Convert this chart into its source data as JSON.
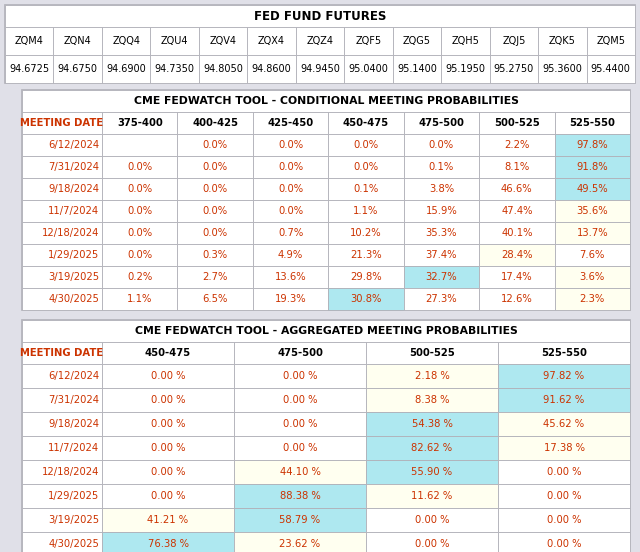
{
  "bg_color": "#e0e0e8",
  "section1_title": "FED FUND FUTURES",
  "futures_headers": [
    "ZQM4",
    "ZQN4",
    "ZQQ4",
    "ZQU4",
    "ZQV4",
    "ZQX4",
    "ZQZ4",
    "ZQF5",
    "ZQG5",
    "ZQH5",
    "ZQJ5",
    "ZQK5",
    "ZQM5"
  ],
  "futures_values": [
    "94.6725",
    "94.6750",
    "94.6900",
    "94.7350",
    "94.8050",
    "94.8600",
    "94.9450",
    "95.0400",
    "95.1400",
    "95.1950",
    "95.2750",
    "95.3600",
    "95.4400"
  ],
  "section2_title": "CME FEDWATCH TOOL - CONDITIONAL MEETING PROBABILITIES",
  "cond_headers": [
    "MEETING DATE",
    "375-400",
    "400-425",
    "425-450",
    "450-475",
    "475-500",
    "500-525",
    "525-550"
  ],
  "cond_dates": [
    "6/12/2024",
    "7/31/2024",
    "9/18/2024",
    "11/7/2024",
    "12/18/2024",
    "1/29/2025",
    "3/19/2025",
    "4/30/2025"
  ],
  "cond_data": [
    [
      "",
      "0.0%",
      "0.0%",
      "0.0%",
      "0.0%",
      "2.2%",
      "97.8%"
    ],
    [
      "0.0%",
      "0.0%",
      "0.0%",
      "0.0%",
      "0.1%",
      "8.1%",
      "91.8%"
    ],
    [
      "0.0%",
      "0.0%",
      "0.0%",
      "0.1%",
      "3.8%",
      "46.6%",
      "49.5%"
    ],
    [
      "0.0%",
      "0.0%",
      "0.0%",
      "1.1%",
      "15.9%",
      "47.4%",
      "35.6%"
    ],
    [
      "0.0%",
      "0.0%",
      "0.7%",
      "10.2%",
      "35.3%",
      "40.1%",
      "13.7%"
    ],
    [
      "0.0%",
      "0.3%",
      "4.9%",
      "21.3%",
      "37.4%",
      "28.4%",
      "7.6%"
    ],
    [
      "0.2%",
      "2.7%",
      "13.6%",
      "29.8%",
      "32.7%",
      "17.4%",
      "3.6%"
    ],
    [
      "1.1%",
      "6.5%",
      "19.3%",
      "30.8%",
      "27.3%",
      "12.6%",
      "2.3%"
    ]
  ],
  "cond_highlight": [
    [
      null,
      null,
      null,
      null,
      null,
      null,
      "cyan"
    ],
    [
      null,
      null,
      null,
      null,
      null,
      null,
      "cyan"
    ],
    [
      null,
      null,
      null,
      null,
      null,
      null,
      "cyan"
    ],
    [
      null,
      null,
      null,
      null,
      null,
      null,
      "yellow"
    ],
    [
      null,
      null,
      null,
      null,
      null,
      null,
      "yellow"
    ],
    [
      null,
      null,
      null,
      null,
      null,
      "yellow",
      null
    ],
    [
      null,
      null,
      null,
      null,
      "cyan",
      null,
      "yellow"
    ],
    [
      null,
      null,
      null,
      "cyan",
      null,
      null,
      "yellow"
    ]
  ],
  "section3_title": "CME FEDWATCH TOOL - AGGREGATED MEETING PROBABILITIES",
  "agg_headers": [
    "MEETING DATE",
    "450-475",
    "475-500",
    "500-525",
    "525-550"
  ],
  "agg_dates": [
    "6/12/2024",
    "7/31/2024",
    "9/18/2024",
    "11/7/2024",
    "12/18/2024",
    "1/29/2025",
    "3/19/2025",
    "4/30/2025"
  ],
  "agg_data": [
    [
      "0.00 %",
      "0.00 %",
      "2.18 %",
      "97.82 %"
    ],
    [
      "0.00 %",
      "0.00 %",
      "8.38 %",
      "91.62 %"
    ],
    [
      "0.00 %",
      "0.00 %",
      "54.38 %",
      "45.62 %"
    ],
    [
      "0.00 %",
      "0.00 %",
      "82.62 %",
      "17.38 %"
    ],
    [
      "0.00 %",
      "44.10 %",
      "55.90 %",
      "0.00 %"
    ],
    [
      "0.00 %",
      "88.38 %",
      "11.62 %",
      "0.00 %"
    ],
    [
      "41.21 %",
      "58.79 %",
      "0.00 %",
      "0.00 %"
    ],
    [
      "76.38 %",
      "23.62 %",
      "0.00 %",
      "0.00 %"
    ]
  ],
  "agg_highlight": [
    [
      null,
      null,
      "yellow",
      "cyan"
    ],
    [
      null,
      null,
      "yellow",
      "cyan"
    ],
    [
      null,
      null,
      "cyan",
      "yellow"
    ],
    [
      null,
      null,
      "cyan",
      "yellow"
    ],
    [
      null,
      "yellow",
      "cyan",
      null
    ],
    [
      null,
      "cyan",
      "yellow",
      null
    ],
    [
      "yellow",
      "cyan",
      null,
      null
    ],
    [
      "cyan",
      "yellow",
      null,
      null
    ]
  ],
  "cyan_color": "#aee8f0",
  "yellow_color": "#fffff0",
  "red_color": "#cc3300",
  "edge_color": "#b0b0b8",
  "white": "#ffffff"
}
